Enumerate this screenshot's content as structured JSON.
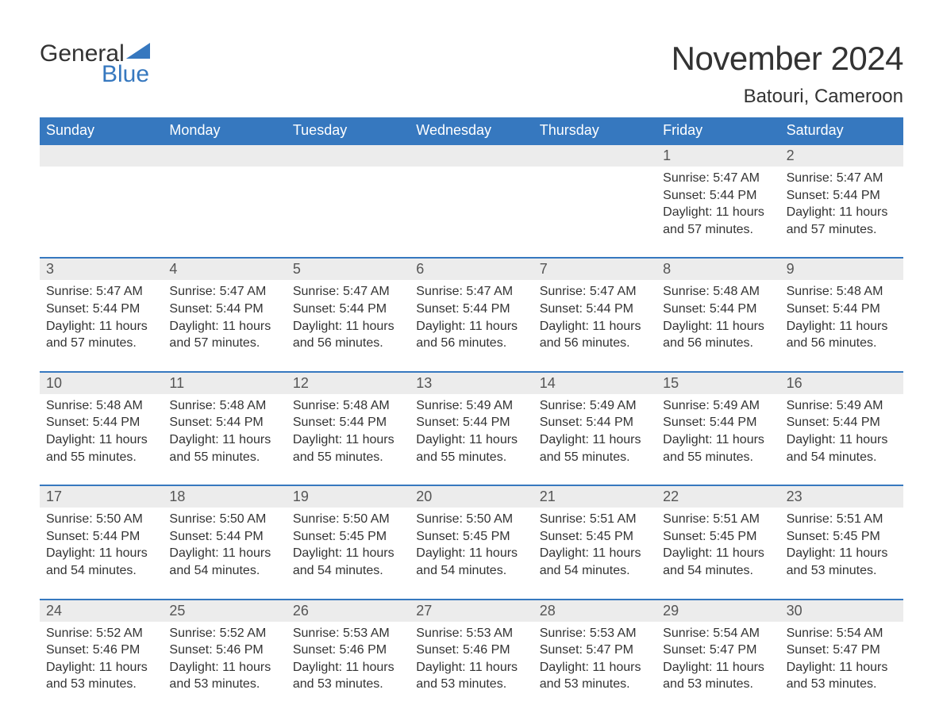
{
  "logo": {
    "top": "General",
    "bottom": "Blue",
    "icon_color": "#3678bf"
  },
  "title": "November 2024",
  "location": "Batouri, Cameroon",
  "weekdays": [
    "Sunday",
    "Monday",
    "Tuesday",
    "Wednesday",
    "Thursday",
    "Friday",
    "Saturday"
  ],
  "colors": {
    "header_bg": "#3678bf",
    "header_text": "#ffffff",
    "strip_bg": "#ececec",
    "strip_border": "#3678bf",
    "text": "#333333"
  },
  "weeks": [
    [
      {
        "day": "",
        "sunrise": "",
        "sunset": "",
        "daylight": ""
      },
      {
        "day": "",
        "sunrise": "",
        "sunset": "",
        "daylight": ""
      },
      {
        "day": "",
        "sunrise": "",
        "sunset": "",
        "daylight": ""
      },
      {
        "day": "",
        "sunrise": "",
        "sunset": "",
        "daylight": ""
      },
      {
        "day": "",
        "sunrise": "",
        "sunset": "",
        "daylight": ""
      },
      {
        "day": "1",
        "sunrise": "Sunrise: 5:47 AM",
        "sunset": "Sunset: 5:44 PM",
        "daylight": "Daylight: 11 hours and 57 minutes."
      },
      {
        "day": "2",
        "sunrise": "Sunrise: 5:47 AM",
        "sunset": "Sunset: 5:44 PM",
        "daylight": "Daylight: 11 hours and 57 minutes."
      }
    ],
    [
      {
        "day": "3",
        "sunrise": "Sunrise: 5:47 AM",
        "sunset": "Sunset: 5:44 PM",
        "daylight": "Daylight: 11 hours and 57 minutes."
      },
      {
        "day": "4",
        "sunrise": "Sunrise: 5:47 AM",
        "sunset": "Sunset: 5:44 PM",
        "daylight": "Daylight: 11 hours and 57 minutes."
      },
      {
        "day": "5",
        "sunrise": "Sunrise: 5:47 AM",
        "sunset": "Sunset: 5:44 PM",
        "daylight": "Daylight: 11 hours and 56 minutes."
      },
      {
        "day": "6",
        "sunrise": "Sunrise: 5:47 AM",
        "sunset": "Sunset: 5:44 PM",
        "daylight": "Daylight: 11 hours and 56 minutes."
      },
      {
        "day": "7",
        "sunrise": "Sunrise: 5:47 AM",
        "sunset": "Sunset: 5:44 PM",
        "daylight": "Daylight: 11 hours and 56 minutes."
      },
      {
        "day": "8",
        "sunrise": "Sunrise: 5:48 AM",
        "sunset": "Sunset: 5:44 PM",
        "daylight": "Daylight: 11 hours and 56 minutes."
      },
      {
        "day": "9",
        "sunrise": "Sunrise: 5:48 AM",
        "sunset": "Sunset: 5:44 PM",
        "daylight": "Daylight: 11 hours and 56 minutes."
      }
    ],
    [
      {
        "day": "10",
        "sunrise": "Sunrise: 5:48 AM",
        "sunset": "Sunset: 5:44 PM",
        "daylight": "Daylight: 11 hours and 55 minutes."
      },
      {
        "day": "11",
        "sunrise": "Sunrise: 5:48 AM",
        "sunset": "Sunset: 5:44 PM",
        "daylight": "Daylight: 11 hours and 55 minutes."
      },
      {
        "day": "12",
        "sunrise": "Sunrise: 5:48 AM",
        "sunset": "Sunset: 5:44 PM",
        "daylight": "Daylight: 11 hours and 55 minutes."
      },
      {
        "day": "13",
        "sunrise": "Sunrise: 5:49 AM",
        "sunset": "Sunset: 5:44 PM",
        "daylight": "Daylight: 11 hours and 55 minutes."
      },
      {
        "day": "14",
        "sunrise": "Sunrise: 5:49 AM",
        "sunset": "Sunset: 5:44 PM",
        "daylight": "Daylight: 11 hours and 55 minutes."
      },
      {
        "day": "15",
        "sunrise": "Sunrise: 5:49 AM",
        "sunset": "Sunset: 5:44 PM",
        "daylight": "Daylight: 11 hours and 55 minutes."
      },
      {
        "day": "16",
        "sunrise": "Sunrise: 5:49 AM",
        "sunset": "Sunset: 5:44 PM",
        "daylight": "Daylight: 11 hours and 54 minutes."
      }
    ],
    [
      {
        "day": "17",
        "sunrise": "Sunrise: 5:50 AM",
        "sunset": "Sunset: 5:44 PM",
        "daylight": "Daylight: 11 hours and 54 minutes."
      },
      {
        "day": "18",
        "sunrise": "Sunrise: 5:50 AM",
        "sunset": "Sunset: 5:44 PM",
        "daylight": "Daylight: 11 hours and 54 minutes."
      },
      {
        "day": "19",
        "sunrise": "Sunrise: 5:50 AM",
        "sunset": "Sunset: 5:45 PM",
        "daylight": "Daylight: 11 hours and 54 minutes."
      },
      {
        "day": "20",
        "sunrise": "Sunrise: 5:50 AM",
        "sunset": "Sunset: 5:45 PM",
        "daylight": "Daylight: 11 hours and 54 minutes."
      },
      {
        "day": "21",
        "sunrise": "Sunrise: 5:51 AM",
        "sunset": "Sunset: 5:45 PM",
        "daylight": "Daylight: 11 hours and 54 minutes."
      },
      {
        "day": "22",
        "sunrise": "Sunrise: 5:51 AM",
        "sunset": "Sunset: 5:45 PM",
        "daylight": "Daylight: 11 hours and 54 minutes."
      },
      {
        "day": "23",
        "sunrise": "Sunrise: 5:51 AM",
        "sunset": "Sunset: 5:45 PM",
        "daylight": "Daylight: 11 hours and 53 minutes."
      }
    ],
    [
      {
        "day": "24",
        "sunrise": "Sunrise: 5:52 AM",
        "sunset": "Sunset: 5:46 PM",
        "daylight": "Daylight: 11 hours and 53 minutes."
      },
      {
        "day": "25",
        "sunrise": "Sunrise: 5:52 AM",
        "sunset": "Sunset: 5:46 PM",
        "daylight": "Daylight: 11 hours and 53 minutes."
      },
      {
        "day": "26",
        "sunrise": "Sunrise: 5:53 AM",
        "sunset": "Sunset: 5:46 PM",
        "daylight": "Daylight: 11 hours and 53 minutes."
      },
      {
        "day": "27",
        "sunrise": "Sunrise: 5:53 AM",
        "sunset": "Sunset: 5:46 PM",
        "daylight": "Daylight: 11 hours and 53 minutes."
      },
      {
        "day": "28",
        "sunrise": "Sunrise: 5:53 AM",
        "sunset": "Sunset: 5:47 PM",
        "daylight": "Daylight: 11 hours and 53 minutes."
      },
      {
        "day": "29",
        "sunrise": "Sunrise: 5:54 AM",
        "sunset": "Sunset: 5:47 PM",
        "daylight": "Daylight: 11 hours and 53 minutes."
      },
      {
        "day": "30",
        "sunrise": "Sunrise: 5:54 AM",
        "sunset": "Sunset: 5:47 PM",
        "daylight": "Daylight: 11 hours and 53 minutes."
      }
    ]
  ]
}
